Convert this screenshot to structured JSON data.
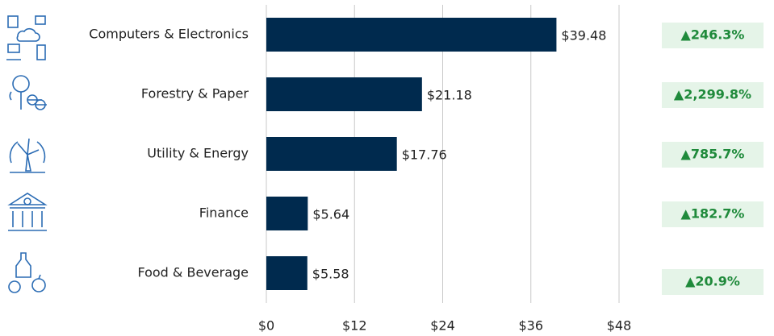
{
  "chart_data": {
    "type": "barh",
    "categories": [
      "Computers & Electronics",
      "Forestry & Paper",
      "Utility & Energy",
      "Finance",
      "Food & Beverage"
    ],
    "values": [
      39.48,
      21.18,
      17.76,
      5.64,
      5.58
    ],
    "value_labels": [
      "$39.48",
      "$21.18",
      "$17.76",
      "$5.64",
      "$5.58"
    ],
    "color": "#002a4e",
    "change_labels": [
      "▲246.3%",
      "▲2,299.8%",
      "▲785.7%",
      "▲182.7%",
      "▲20.9%"
    ],
    "xlim": [
      0,
      48
    ],
    "xticks": [
      {
        "value": 0,
        "label": "$0"
      },
      {
        "value": 12,
        "label": "$12"
      },
      {
        "value": 24,
        "label": "$24"
      },
      {
        "value": 36,
        "label": "$36"
      },
      {
        "value": 48,
        "label": "$48"
      }
    ],
    "grid": true
  }
}
